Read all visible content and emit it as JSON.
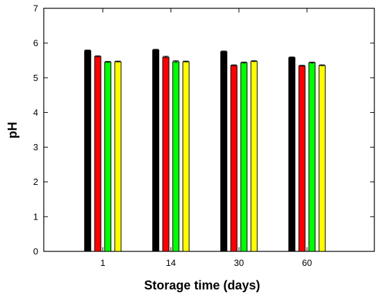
{
  "chart_data": {
    "type": "bar",
    "title": "",
    "xlabel": "Storage time (days)",
    "ylabel": "pH",
    "ylim": [
      0,
      7
    ],
    "yticks": [
      "0",
      "1",
      "2",
      "3",
      "4",
      "5",
      "6",
      "7"
    ],
    "categories": [
      "1",
      "14",
      "30",
      "60"
    ],
    "grid": false,
    "legend": "none",
    "series": [
      {
        "color": "#000000",
        "values": [
          5.78,
          5.8,
          5.75,
          5.58
        ],
        "errors": [
          0.02,
          0.02,
          0.02,
          0.02
        ]
      },
      {
        "color": "#ff0000",
        "values": [
          5.61,
          5.59,
          5.35,
          5.34
        ],
        "errors": [
          0.02,
          0.03,
          0.02,
          0.02
        ]
      },
      {
        "color": "#00ff00",
        "values": [
          5.45,
          5.46,
          5.43,
          5.43
        ],
        "errors": [
          0.02,
          0.03,
          0.02,
          0.02
        ]
      },
      {
        "color": "#ffff00",
        "values": [
          5.46,
          5.46,
          5.47,
          5.35
        ],
        "errors": [
          0.02,
          0.02,
          0.02,
          0.02
        ]
      }
    ]
  }
}
